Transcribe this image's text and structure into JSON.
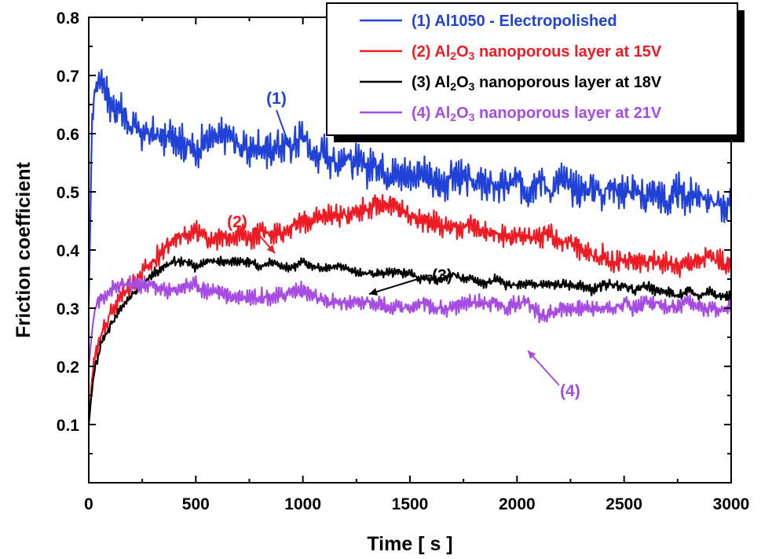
{
  "chart_data": {
    "type": "line",
    "xlabel": "Time [ s ]",
    "ylabel": "Friction coefficient",
    "xlim": [
      0,
      3000
    ],
    "ylim": [
      0.0,
      0.8
    ],
    "xticks": [
      "0",
      "500",
      "1000",
      "1500",
      "2000",
      "2500",
      "3000"
    ],
    "yticks": [
      "0.1",
      "0.2",
      "0.3",
      "0.4",
      "0.5",
      "0.6",
      "0.7",
      "0.8"
    ],
    "legend_position": "top-right",
    "grid": false,
    "series": [
      {
        "name": "(1) Al1050 - Electropolished",
        "legend_parts": [
          {
            "t": "(1) Al1050 - Electropolished"
          }
        ],
        "color": "#2142d6",
        "annotation": "(1)",
        "x": [
          0,
          15,
          30,
          60,
          100,
          150,
          200,
          250,
          300,
          350,
          400,
          450,
          500,
          550,
          600,
          650,
          700,
          750,
          800,
          850,
          900,
          950,
          1000,
          1050,
          1100,
          1150,
          1200,
          1250,
          1300,
          1350,
          1400,
          1450,
          1500,
          1550,
          1600,
          1650,
          1700,
          1750,
          1800,
          1850,
          1900,
          1950,
          2000,
          2050,
          2100,
          2150,
          2200,
          2250,
          2300,
          2350,
          2400,
          2450,
          2500,
          2550,
          2600,
          2650,
          2700,
          2750,
          2800,
          2850,
          2900,
          2950,
          3000
        ],
        "y": [
          0.3,
          0.62,
          0.68,
          0.7,
          0.65,
          0.64,
          0.61,
          0.6,
          0.6,
          0.59,
          0.6,
          0.58,
          0.57,
          0.59,
          0.59,
          0.6,
          0.58,
          0.57,
          0.58,
          0.57,
          0.58,
          0.58,
          0.6,
          0.56,
          0.57,
          0.55,
          0.56,
          0.55,
          0.54,
          0.55,
          0.53,
          0.53,
          0.53,
          0.53,
          0.52,
          0.51,
          0.53,
          0.52,
          0.52,
          0.51,
          0.51,
          0.51,
          0.52,
          0.5,
          0.53,
          0.5,
          0.52,
          0.51,
          0.5,
          0.51,
          0.5,
          0.51,
          0.5,
          0.5,
          0.49,
          0.5,
          0.48,
          0.5,
          0.49,
          0.5,
          0.48,
          0.48,
          0.47
        ],
        "noise_amp": 0.03
      },
      {
        "name": "(2) Al2O3 nanoporous layer at 15V",
        "legend_parts": [
          {
            "t": "(2) Al"
          },
          {
            "t": "2",
            "sub": true
          },
          {
            "t": "O"
          },
          {
            "t": "3",
            "sub": true
          },
          {
            "t": " nanoporous layer at 15V"
          }
        ],
        "color": "#ed1c24",
        "annotation": "(2)",
        "x": [
          0,
          15,
          30,
          60,
          100,
          150,
          200,
          250,
          300,
          350,
          400,
          450,
          500,
          550,
          600,
          650,
          700,
          750,
          800,
          850,
          900,
          950,
          1000,
          1050,
          1100,
          1150,
          1200,
          1250,
          1300,
          1350,
          1400,
          1450,
          1500,
          1550,
          1600,
          1650,
          1700,
          1750,
          1800,
          1850,
          1900,
          1950,
          2000,
          2050,
          2100,
          2150,
          2200,
          2250,
          2300,
          2350,
          2400,
          2450,
          2500,
          2550,
          2600,
          2650,
          2700,
          2750,
          2800,
          2850,
          2900,
          2950,
          3000
        ],
        "y": [
          0.1,
          0.18,
          0.22,
          0.26,
          0.29,
          0.32,
          0.34,
          0.36,
          0.38,
          0.4,
          0.42,
          0.43,
          0.43,
          0.42,
          0.42,
          0.42,
          0.43,
          0.42,
          0.43,
          0.43,
          0.43,
          0.44,
          0.45,
          0.45,
          0.46,
          0.46,
          0.46,
          0.47,
          0.47,
          0.48,
          0.48,
          0.47,
          0.46,
          0.45,
          0.45,
          0.44,
          0.44,
          0.44,
          0.44,
          0.43,
          0.43,
          0.42,
          0.42,
          0.42,
          0.42,
          0.43,
          0.41,
          0.42,
          0.4,
          0.39,
          0.39,
          0.38,
          0.38,
          0.38,
          0.38,
          0.38,
          0.38,
          0.37,
          0.38,
          0.38,
          0.39,
          0.38,
          0.37
        ],
        "noise_amp": 0.018
      },
      {
        "name": "(3) Al2O3 nanoporous layer at 18V",
        "legend_parts": [
          {
            "t": "(3) Al"
          },
          {
            "t": "2",
            "sub": true
          },
          {
            "t": "O"
          },
          {
            "t": "3",
            "sub": true
          },
          {
            "t": " nanoporous layer at 18V"
          }
        ],
        "color": "#000000",
        "annotation": "(3)",
        "x": [
          0,
          15,
          30,
          60,
          100,
          150,
          200,
          250,
          300,
          350,
          400,
          450,
          500,
          550,
          600,
          650,
          700,
          750,
          800,
          850,
          900,
          950,
          1000,
          1050,
          1100,
          1150,
          1200,
          1250,
          1300,
          1350,
          1400,
          1450,
          1500,
          1550,
          1600,
          1650,
          1700,
          1750,
          1800,
          1850,
          1900,
          1950,
          2000,
          2050,
          2100,
          2150,
          2200,
          2250,
          2300,
          2350,
          2400,
          2450,
          2500,
          2550,
          2600,
          2650,
          2700,
          2750,
          2800,
          2850,
          2900,
          2950,
          3000
        ],
        "y": [
          0.1,
          0.16,
          0.2,
          0.24,
          0.27,
          0.3,
          0.32,
          0.34,
          0.36,
          0.37,
          0.38,
          0.38,
          0.37,
          0.38,
          0.38,
          0.38,
          0.38,
          0.38,
          0.37,
          0.38,
          0.37,
          0.37,
          0.38,
          0.37,
          0.37,
          0.37,
          0.37,
          0.36,
          0.36,
          0.36,
          0.36,
          0.36,
          0.36,
          0.35,
          0.35,
          0.35,
          0.36,
          0.35,
          0.35,
          0.34,
          0.35,
          0.34,
          0.34,
          0.34,
          0.34,
          0.34,
          0.34,
          0.34,
          0.34,
          0.33,
          0.34,
          0.34,
          0.34,
          0.33,
          0.34,
          0.33,
          0.33,
          0.32,
          0.33,
          0.32,
          0.33,
          0.32,
          0.32
        ],
        "noise_amp": 0.008
      },
      {
        "name": "(4) Al2O3 nanoporous layer at 21V",
        "legend_parts": [
          {
            "t": "(4) Al"
          },
          {
            "t": "2",
            "sub": true
          },
          {
            "t": "O"
          },
          {
            "t": "3",
            "sub": true
          },
          {
            "t": " nanoporous layer at 21V"
          }
        ],
        "color": "#a64ce3",
        "annotation": "(4)",
        "x": [
          0,
          15,
          30,
          60,
          100,
          150,
          200,
          250,
          300,
          350,
          400,
          450,
          500,
          550,
          600,
          650,
          700,
          750,
          800,
          850,
          900,
          950,
          1000,
          1050,
          1100,
          1150,
          1200,
          1250,
          1300,
          1350,
          1400,
          1450,
          1500,
          1550,
          1600,
          1650,
          1700,
          1750,
          1800,
          1850,
          1900,
          1950,
          2000,
          2050,
          2100,
          2150,
          2200,
          2250,
          2300,
          2350,
          2400,
          2450,
          2500,
          2550,
          2600,
          2650,
          2700,
          2750,
          2800,
          2850,
          2900,
          2950,
          3000
        ],
        "y": [
          0.2,
          0.26,
          0.3,
          0.32,
          0.33,
          0.34,
          0.34,
          0.34,
          0.34,
          0.33,
          0.33,
          0.34,
          0.34,
          0.33,
          0.33,
          0.32,
          0.32,
          0.32,
          0.32,
          0.32,
          0.32,
          0.33,
          0.33,
          0.32,
          0.31,
          0.31,
          0.31,
          0.31,
          0.31,
          0.31,
          0.3,
          0.3,
          0.3,
          0.31,
          0.3,
          0.3,
          0.3,
          0.31,
          0.31,
          0.31,
          0.31,
          0.3,
          0.31,
          0.31,
          0.29,
          0.29,
          0.3,
          0.3,
          0.3,
          0.3,
          0.3,
          0.3,
          0.31,
          0.3,
          0.31,
          0.31,
          0.3,
          0.3,
          0.31,
          0.3,
          0.3,
          0.3,
          0.3
        ],
        "noise_amp": 0.014
      }
    ]
  }
}
